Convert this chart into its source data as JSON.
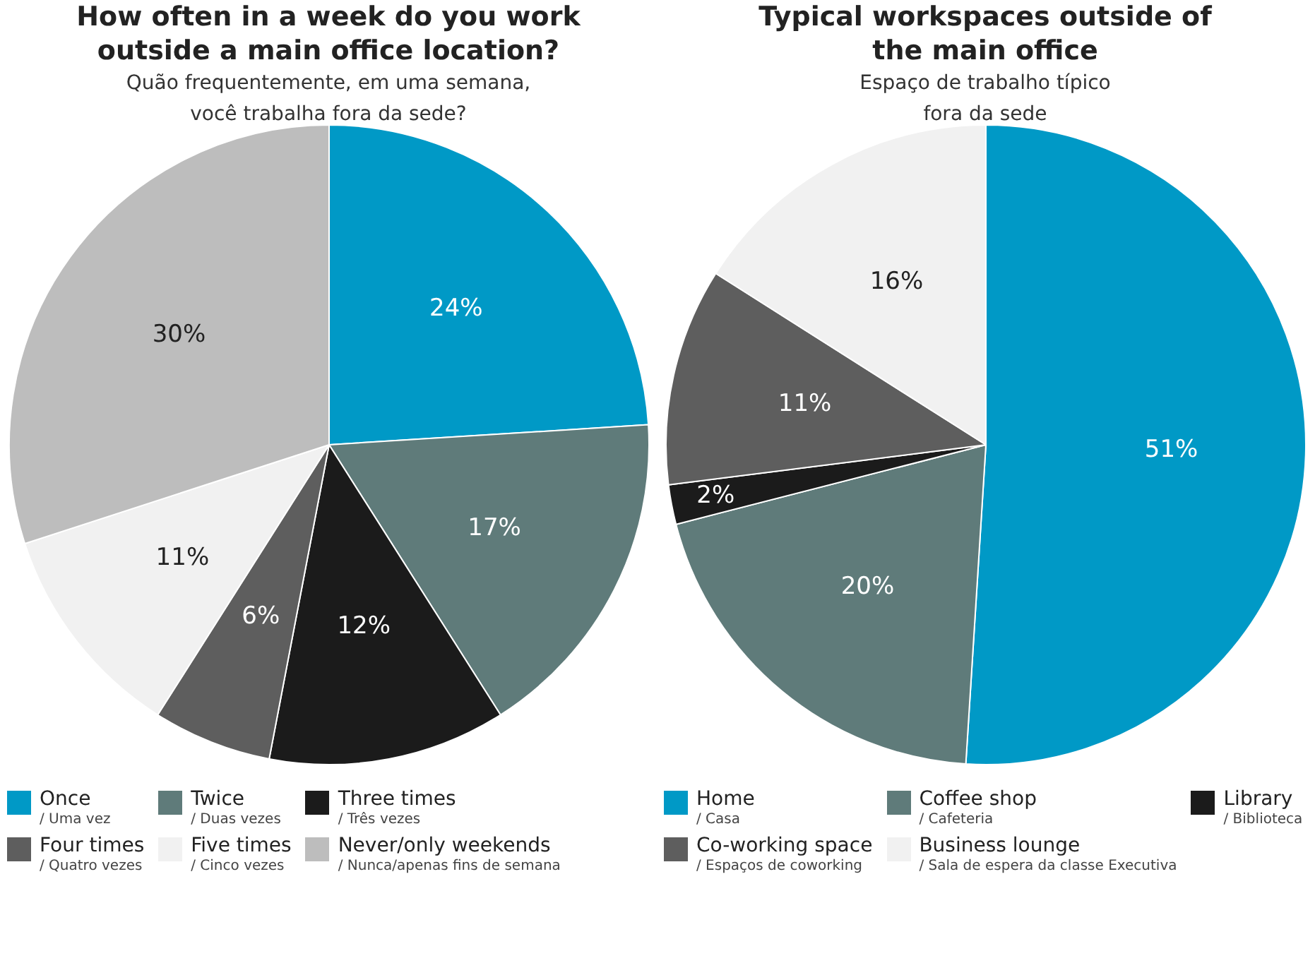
{
  "chart_data": [
    {
      "type": "pie",
      "title": "How often in a week do you work outside a main office location?",
      "subtitle": "Quão frequentemente, em uma semana, você trabalha fora da sede?",
      "categories": [
        "Once / Uma vez",
        "Twice / Duas vezes",
        "Three times / Três vezes",
        "Four times / Quatro vezes",
        "Five times / Cinco vezes",
        "Never/only weekends / Nunca/apenas fins de semana"
      ],
      "values": [
        24,
        17,
        12,
        6,
        11,
        30
      ],
      "colors": [
        "#0099c6",
        "#5f7b7a",
        "#1b1b1b",
        "#5e5e5e",
        "#f1f1f1",
        "#bdbdbd"
      ],
      "value_labels": [
        "24%",
        "17%",
        "12%",
        "6%",
        "11%",
        "30%"
      ],
      "legend": "bottom"
    },
    {
      "type": "pie",
      "title": "Typical workspaces outside of the main office",
      "subtitle": "Espaço de trabalho típico fora da sede",
      "categories": [
        "Home / Casa",
        "Coffee shop / Cafeteria",
        "Library / Biblioteca",
        "Co-working space / Espaços de coworking",
        "Business lounge / Sala de espera da classe Executiva"
      ],
      "values": [
        51,
        20,
        2,
        11,
        16
      ],
      "colors": [
        "#0099c6",
        "#5f7b7a",
        "#1b1b1b",
        "#5e5e5e",
        "#f1f1f1"
      ],
      "value_labels": [
        "51%",
        "20%",
        "2%",
        "11%",
        "16%"
      ],
      "legend": "bottom"
    }
  ]
}
